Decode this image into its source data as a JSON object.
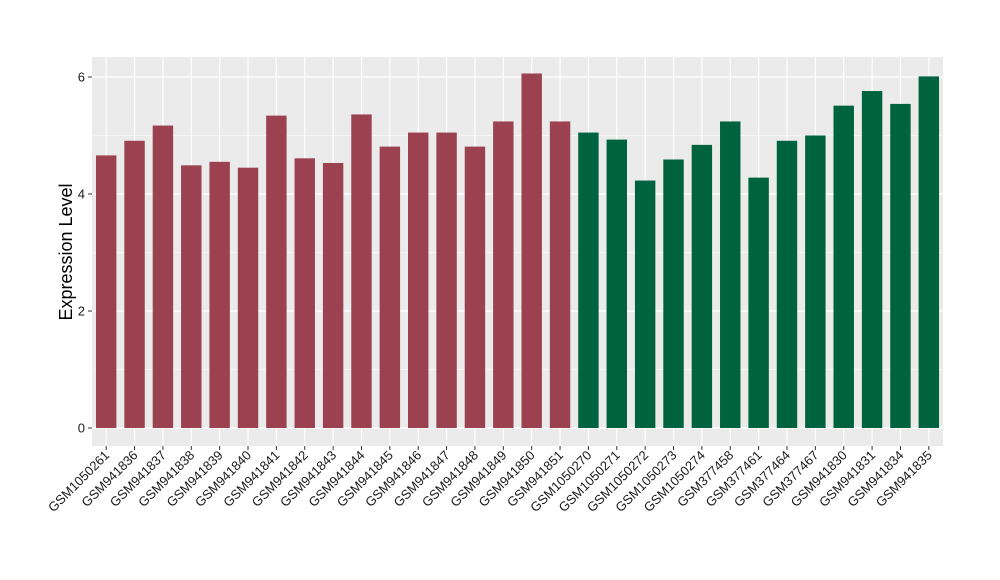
{
  "chart_data": {
    "type": "bar",
    "title": "",
    "xlabel": "",
    "ylabel": "Expression Level",
    "ylim": [
      0,
      6.2
    ],
    "yticks": [
      0,
      2,
      4,
      6
    ],
    "grid": true,
    "legend": "none",
    "categories": [
      "GSM1050261",
      "GSM941836",
      "GSM941837",
      "GSM941838",
      "GSM941839",
      "GSM941840",
      "GSM941841",
      "GSM941842",
      "GSM941843",
      "GSM941844",
      "GSM941845",
      "GSM941846",
      "GSM941847",
      "GSM941848",
      "GSM941849",
      "GSM941850",
      "GSM941851",
      "GSM1050270",
      "GSM1050271",
      "GSM1050272",
      "GSM1050273",
      "GSM1050274",
      "GSM377458",
      "GSM377461",
      "GSM377464",
      "GSM377467",
      "GSM941830",
      "GSM941831",
      "GSM941834",
      "GSM941835"
    ],
    "values": [
      4.66,
      4.91,
      5.17,
      4.49,
      4.55,
      4.45,
      5.34,
      4.61,
      4.53,
      5.36,
      4.81,
      5.05,
      5.05,
      4.81,
      5.24,
      6.06,
      5.24,
      5.05,
      4.93,
      4.23,
      4.59,
      4.84,
      5.24,
      4.28,
      4.91,
      5.0,
      5.51,
      5.76,
      5.54,
      6.01
    ],
    "group_sizes": [
      17,
      13
    ],
    "colors": [
      "#9b4150",
      "#006340"
    ],
    "panel_background": "#ebebeb",
    "grid_color": "#ffffff"
  }
}
